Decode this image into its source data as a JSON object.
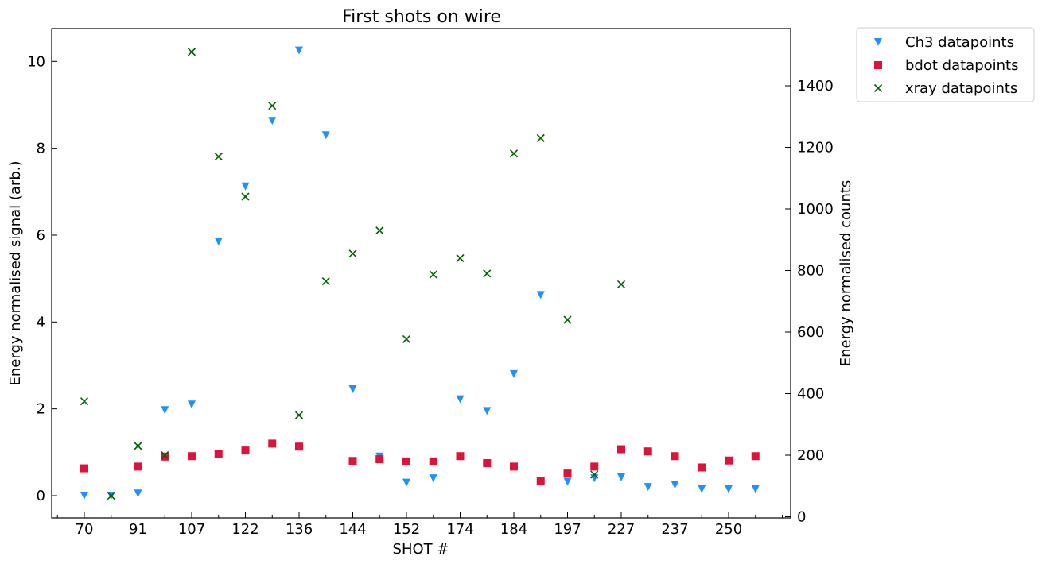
{
  "chart_data": {
    "type": "scatter",
    "title": "First shots on wire",
    "xlabel": "SHOT #",
    "ylabel_left": "Energy normalised signal (arb.)",
    "ylabel_right": "Energy normalised counts",
    "x_tick_labels": [
      "70",
      "91",
      "107",
      "122",
      "136",
      "144",
      "152",
      "174",
      "184",
      "197",
      "227",
      "237",
      "250"
    ],
    "ylim_left": [
      -0.5,
      10.7
    ],
    "ylim_right": [
      0,
      1580
    ],
    "yticks_left": [
      0,
      2,
      4,
      6,
      8,
      10
    ],
    "yticks_right": [
      0,
      200,
      400,
      600,
      800,
      1000,
      1200,
      1400
    ],
    "legend_position": "outside top-right",
    "series": [
      {
        "name": "Ch3 datapoints",
        "axis": "left",
        "marker": "triangle-down",
        "color": "#1e90ff",
        "values": [
          0.0,
          0.0,
          0.05,
          1.97,
          2.1,
          5.85,
          7.12,
          8.63,
          10.25,
          8.3,
          2.45,
          0.9,
          0.3,
          0.4,
          2.22,
          1.95,
          2.8,
          4.62,
          0.32,
          0.4,
          0.42,
          0.2,
          0.25,
          0.15,
          0.15,
          0.15
        ]
      },
      {
        "name": "bdot datapoints",
        "axis": "left",
        "marker": "square",
        "color": "#dc143c",
        "values": [
          0.63,
          null,
          0.67,
          0.9,
          0.91,
          0.97,
          1.04,
          1.2,
          1.13,
          null,
          0.8,
          0.84,
          0.79,
          0.79,
          0.91,
          0.75,
          0.67,
          0.33,
          0.51,
          0.67,
          1.07,
          1.02,
          0.91,
          0.65,
          0.81,
          0.91
        ]
      },
      {
        "name": "xray datapoints",
        "axis": "right",
        "marker": "x",
        "color": "#006400",
        "values": [
          375,
          68,
          230,
          200,
          1510,
          1170,
          1040,
          1335,
          330,
          765,
          855,
          930,
          577,
          787,
          840,
          790,
          1180,
          1230,
          640,
          137,
          755,
          null,
          null,
          null,
          null,
          null
        ]
      }
    ]
  }
}
